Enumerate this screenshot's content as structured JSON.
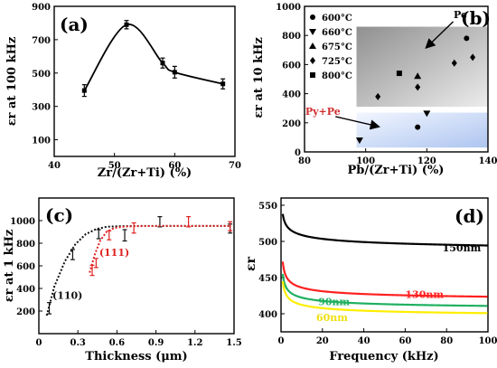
{
  "figure": {
    "background": "#ffffff",
    "axis_color": "#000000"
  },
  "chart_data": [
    {
      "id": "a",
      "panel_label": "(a)",
      "type": "line",
      "xlabel": "Zr/(Zr+Ti)  (%)",
      "ylabel": "εr at 100 kHz",
      "xlim": [
        40,
        70
      ],
      "ylim": [
        0,
        900
      ],
      "xticks": [
        40,
        50,
        60,
        70
      ],
      "yticks": [
        100,
        300,
        500,
        700,
        900
      ],
      "grid": false,
      "series": [
        {
          "x": [
            45,
            52,
            58,
            60,
            68
          ],
          "y": [
            395,
            790,
            560,
            505,
            435
          ],
          "yerr": [
            35,
            25,
            30,
            35,
            30
          ],
          "color": "#000000",
          "marker": "square"
        }
      ]
    },
    {
      "id": "b",
      "panel_label": "(b)",
      "type": "scatter",
      "xlabel": "Pb/(Zr+Ti) (%)",
      "ylabel": "εr at 10 kHz",
      "xlim": [
        80,
        140
      ],
      "ylim": [
        0,
        1000
      ],
      "xticks": [
        80,
        100,
        120,
        140
      ],
      "yticks": [
        0,
        200,
        400,
        600,
        800,
        1000
      ],
      "grid": false,
      "legend_position": "top-left",
      "regions": [
        {
          "label": "Pe",
          "x_range": [
            97,
            140
          ],
          "y_range": [
            310,
            860
          ],
          "fill_from": "#909090",
          "fill_to": "#ececec",
          "label_x": 131,
          "label_y": 920,
          "arrow_to_x": 120,
          "arrow_to_y": 720,
          "label_color": "#000000"
        },
        {
          "label": "Py+Pe",
          "x_range": [
            97,
            140
          ],
          "y_range": [
            30,
            270
          ],
          "fill_from": "#f2f6ff",
          "fill_to": "#aec5f0",
          "label_x": 86,
          "label_y": 255,
          "arrow_to_x": 104,
          "arrow_to_y": 175,
          "label_color": "#d03030"
        }
      ],
      "series": [
        {
          "name": "600°C",
          "marker": "circle",
          "x": [
            117,
            133
          ],
          "y": [
            170,
            780
          ]
        },
        {
          "name": "660°C",
          "marker": "triangle-down",
          "x": [
            98,
            120
          ],
          "y": [
            80,
            265
          ]
        },
        {
          "name": "675°C",
          "marker": "triangle-up",
          "x": [
            117
          ],
          "y": [
            520
          ]
        },
        {
          "name": "725°C",
          "marker": "diamond",
          "x": [
            104,
            117,
            129,
            135
          ],
          "y": [
            380,
            445,
            610,
            650
          ]
        },
        {
          "name": "800°C",
          "marker": "square",
          "x": [
            111
          ],
          "y": [
            540
          ]
        }
      ]
    },
    {
      "id": "c",
      "panel_label": "(c)",
      "type": "line",
      "xlabel": "Thickness (μm)",
      "ylabel": "εr at 1 kHz",
      "xlim": [
        0,
        1.5
      ],
      "ylim": [
        0,
        1200
      ],
      "xticks": [
        0,
        0.3,
        0.6,
        0.9,
        1.2,
        1.5
      ],
      "yticks": [
        200,
        400,
        600,
        800,
        1000
      ],
      "grid": false,
      "series": [
        {
          "name": "(110)",
          "color": "#111111",
          "name_x": 0.22,
          "name_y": 310,
          "x": [
            0.08,
            0.26,
            0.46,
            0.66,
            0.93,
            1.47
          ],
          "y": [
            225,
            700,
            880,
            870,
            990,
            930
          ],
          "yerr": [
            50,
            45,
            40,
            50,
            45,
            40
          ],
          "fit_x": [
            0.06,
            0.12,
            0.2,
            0.28,
            0.36,
            0.44,
            0.52,
            0.6,
            0.7,
            0.85,
            1.0,
            1.2,
            1.47
          ],
          "fit_y": [
            160,
            420,
            640,
            790,
            880,
            925,
            945,
            950,
            952,
            953,
            953,
            953,
            953
          ]
        },
        {
          "name": "(111)",
          "color": "#e02020",
          "name_x": 0.58,
          "name_y": 690,
          "x": [
            0.41,
            0.44,
            0.54,
            0.73,
            1.15,
            1.47
          ],
          "y": [
            560,
            625,
            870,
            935,
            990,
            950
          ],
          "yerr": [
            45,
            40,
            40,
            45,
            45,
            40
          ],
          "fit_x": [
            0.39,
            0.43,
            0.47,
            0.52,
            0.58,
            0.66,
            0.8,
            1.0,
            1.2,
            1.47
          ],
          "fit_y": [
            540,
            700,
            820,
            900,
            935,
            948,
            952,
            953,
            953,
            953
          ]
        }
      ]
    },
    {
      "id": "d",
      "panel_label": "(d)",
      "type": "line",
      "xlabel": "Frequency (kHz)",
      "ylabel": "εr",
      "xlim": [
        0,
        100
      ],
      "ylim": [
        375,
        560
      ],
      "xticks": [
        0,
        20,
        40,
        60,
        80,
        100
      ],
      "yticks": [
        400,
        450,
        500,
        550
      ],
      "grid": false,
      "series": [
        {
          "name": "150nm",
          "color": "#000000",
          "start": 538,
          "plateau": 476,
          "k": 0.9,
          "label_x": 78,
          "label_y": 486,
          "label_color": "#000000"
        },
        {
          "name": "130nm",
          "color": "#ff2020",
          "start": 472,
          "plateau": 415,
          "k": 1.4,
          "label_x": 60,
          "label_y": 422,
          "label_color": "#ff2020"
        },
        {
          "name": "90nm",
          "color": "#20b060",
          "start": 455,
          "plateau": 403,
          "k": 1.4,
          "label_x": 18,
          "label_y": 412,
          "label_color": "#20b060"
        },
        {
          "name": "60nm",
          "color": "#ffee00",
          "start": 445,
          "plateau": 393,
          "k": 1.4,
          "label_x": 17,
          "label_y": 390,
          "label_color": "#eee010"
        }
      ]
    }
  ]
}
